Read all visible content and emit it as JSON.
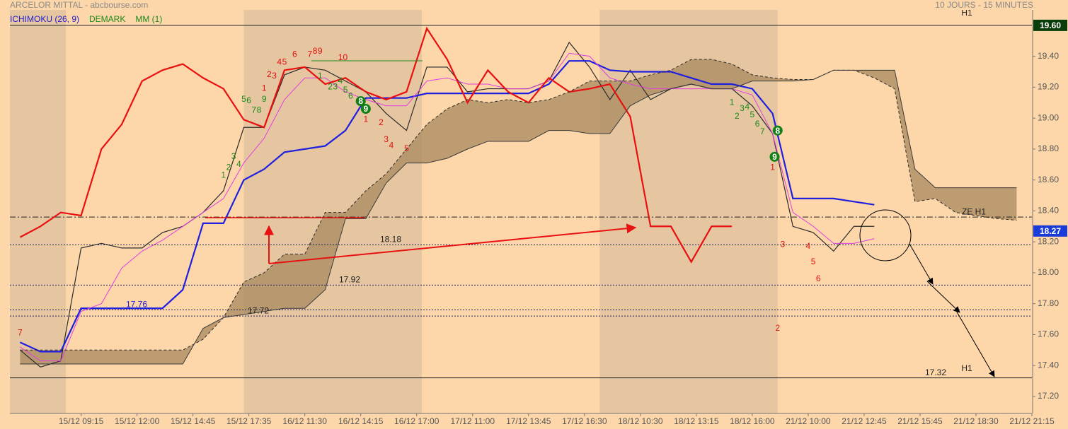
{
  "chart_data": {
    "type": "ichimoku",
    "title": "ARCELOR MITTAL - abcbourse.com",
    "subtitle": "10 JOURS - 15 MINUTES",
    "legend": [
      {
        "name": "ICHIMOKU (26, 9)",
        "color": "#2020d0"
      },
      {
        "name": "DEMARK",
        "color": "#1a8a1a"
      },
      {
        "name": "MM (1)",
        "color": "#1a8a1a"
      }
    ],
    "xlim": [
      -14,
      187
    ],
    "ylim": [
      17.09,
      19.7
    ],
    "xticks": [
      {
        "value": 0,
        "label": "15/12 09:15"
      },
      {
        "value": 11,
        "label": "15/12 12:00"
      },
      {
        "value": 22,
        "label": "15/12 14:45"
      },
      {
        "value": 33,
        "label": "15/12 17:35"
      },
      {
        "value": 44,
        "label": "16/12 11:30"
      },
      {
        "value": 55,
        "label": "16/12 14:15"
      },
      {
        "value": 66,
        "label": "16/12 17:00"
      },
      {
        "value": 77,
        "label": "17/12 11:00"
      },
      {
        "value": 88,
        "label": "17/12 13:45"
      },
      {
        "value": 99,
        "label": "17/12 16:30"
      },
      {
        "value": 110,
        "label": "18/12 10:30"
      },
      {
        "value": 121,
        "label": "18/12 13:15"
      },
      {
        "value": 132,
        "label": "18/12 16:00"
      },
      {
        "value": 143,
        "label": "21/12 10:00"
      },
      {
        "value": 154,
        "label": "21/12 12:45"
      },
      {
        "value": 165,
        "label": "21/12 15:45"
      },
      {
        "value": 176,
        "label": "21/12 18:30"
      },
      {
        "value": 187,
        "label": "21/12 21:15"
      }
    ],
    "yticks": [
      {
        "value": 17.2,
        "label": "17.20"
      },
      {
        "value": 17.4,
        "label": "17.40"
      },
      {
        "value": 17.6,
        "label": "17.60"
      },
      {
        "value": 17.8,
        "label": "17.80"
      },
      {
        "value": 18.0,
        "label": "18.00"
      },
      {
        "value": 18.2,
        "label": "18.20"
      },
      {
        "value": 18.4,
        "label": "18.40"
      },
      {
        "value": 18.6,
        "label": "18.60"
      },
      {
        "value": 18.8,
        "label": "18.80"
      },
      {
        "value": 19.0,
        "label": "19.00"
      },
      {
        "value": 19.2,
        "label": "19.20"
      },
      {
        "value": 19.4,
        "label": "19.40"
      }
    ],
    "shaded_x": [
      [
        -14,
        -3
      ],
      [
        32,
        67
      ],
      [
        102,
        137
      ]
    ],
    "x": [
      -12,
      -8,
      -4,
      0,
      4,
      8,
      12,
      16,
      20,
      24,
      28,
      32,
      36,
      40,
      44,
      48,
      52,
      56,
      60,
      64,
      68,
      72,
      76,
      80,
      84,
      88,
      92,
      96,
      100,
      104,
      108,
      112,
      116,
      120,
      124,
      128,
      132,
      136,
      140,
      144,
      148,
      152,
      156,
      160,
      164,
      168,
      172,
      176,
      180,
      184
    ],
    "series": [
      {
        "name": "price",
        "color": "#2b2b2b",
        "style": "solid",
        "values": [
          17.5,
          17.39,
          17.43,
          18.16,
          18.19,
          18.16,
          18.16,
          18.26,
          18.3,
          18.39,
          18.53,
          18.94,
          18.94,
          19.28,
          19.33,
          19.31,
          19.24,
          19.17,
          19.03,
          18.92,
          19.33,
          19.33,
          19.17,
          19.19,
          19.19,
          19.19,
          19.24,
          19.49,
          19.33,
          19.12,
          19.31,
          19.12,
          19.19,
          19.22,
          19.19,
          19.19,
          19.08,
          18.9,
          18.3,
          18.26,
          18.14,
          18.3,
          18.3,
          null,
          null,
          null,
          null,
          null,
          null,
          null
        ]
      },
      {
        "name": "kijun",
        "color": "#1f1fe0",
        "style": "solid",
        "values": [
          17.55,
          17.49,
          17.49,
          17.77,
          17.77,
          17.77,
          17.77,
          17.77,
          17.89,
          18.32,
          18.32,
          18.6,
          18.67,
          18.78,
          18.8,
          18.82,
          18.92,
          19.13,
          19.13,
          19.13,
          19.16,
          19.16,
          19.16,
          19.16,
          19.16,
          19.16,
          19.22,
          19.37,
          19.37,
          19.31,
          19.3,
          19.3,
          19.3,
          19.26,
          19.22,
          19.22,
          19.19,
          19.03,
          18.48,
          18.48,
          18.48,
          18.46,
          18.44,
          null,
          null,
          null,
          null,
          null,
          null,
          null
        ]
      },
      {
        "name": "tenkan",
        "color": "#e040e0",
        "style": "solid",
        "values": [
          17.52,
          17.43,
          17.43,
          17.75,
          17.8,
          18.03,
          18.14,
          18.21,
          18.3,
          18.39,
          18.48,
          18.71,
          18.87,
          19.12,
          19.26,
          19.26,
          19.17,
          19.12,
          19.08,
          19.08,
          19.24,
          19.26,
          19.22,
          19.22,
          19.19,
          19.19,
          19.24,
          19.42,
          19.4,
          19.26,
          19.22,
          19.19,
          19.19,
          19.19,
          19.19,
          19.19,
          19.15,
          18.9,
          18.39,
          18.3,
          18.19,
          18.19,
          18.22,
          null,
          null,
          null,
          null,
          null,
          null,
          null
        ]
      },
      {
        "name": "chikou",
        "color": "#e81010",
        "style": "solid",
        "values": [
          18.23,
          18.3,
          18.39,
          18.37,
          18.8,
          18.96,
          19.24,
          19.31,
          19.35,
          19.26,
          19.19,
          18.99,
          18.94,
          19.31,
          19.33,
          19.22,
          19.26,
          19.17,
          19.12,
          19.17,
          19.58,
          19.38,
          19.1,
          19.31,
          19.17,
          19.1,
          19.26,
          19.17,
          19.19,
          19.22,
          19.01,
          18.3,
          18.3,
          18.07,
          18.3,
          18.3,
          null,
          null,
          null,
          null,
          null,
          null,
          null,
          null,
          null,
          null,
          null,
          null,
          null,
          null
        ]
      },
      {
        "name": "span_a",
        "color": "#2a2a2a",
        "style": "dashed",
        "values": [
          17.5,
          17.5,
          17.5,
          17.5,
          17.5,
          17.5,
          17.5,
          17.5,
          17.5,
          17.57,
          17.71,
          17.94,
          18.0,
          18.12,
          18.12,
          18.39,
          18.39,
          18.53,
          18.64,
          18.8,
          18.96,
          19.06,
          19.12,
          19.1,
          19.12,
          19.1,
          19.12,
          19.17,
          19.24,
          19.24,
          19.24,
          19.28,
          19.31,
          19.38,
          19.38,
          19.35,
          19.28,
          19.26,
          19.25,
          19.25,
          19.31,
          19.31,
          19.26,
          19.19,
          18.46,
          18.48,
          18.39,
          18.37,
          18.35,
          18.34
        ]
      },
      {
        "name": "span_b",
        "color": "#3a3a3a",
        "style": "solid",
        "values": [
          17.41,
          17.41,
          17.41,
          17.41,
          17.41,
          17.41,
          17.41,
          17.41,
          17.41,
          17.64,
          17.71,
          17.73,
          17.75,
          17.77,
          17.77,
          17.89,
          18.35,
          18.35,
          18.58,
          18.71,
          18.71,
          18.74,
          18.8,
          18.85,
          18.85,
          18.85,
          18.92,
          18.92,
          18.9,
          18.9,
          19.08,
          19.15,
          19.19,
          19.22,
          19.19,
          19.19,
          19.24,
          19.24,
          19.24,
          19.25,
          19.31,
          19.31,
          19.31,
          19.31,
          18.67,
          18.55,
          18.55,
          18.55,
          18.55,
          18.55
        ]
      }
    ],
    "cloud_color": "#a8885f",
    "levels": [
      {
        "value": 19.6,
        "style": "solid",
        "label": "19.60"
      },
      {
        "value": 18.36,
        "style": "dashdot",
        "label": "ZE H1"
      },
      {
        "value": 18.18,
        "style": "dotted",
        "label": "18.18"
      },
      {
        "value": 17.92,
        "style": "dotted",
        "label": "17.92"
      },
      {
        "value": 17.76,
        "style": "dotted",
        "label": "17.76"
      },
      {
        "value": 17.72,
        "style": "dotted",
        "label": "17.72"
      },
      {
        "value": 17.32,
        "style": "solid",
        "label": "17.32",
        "note": "H1"
      }
    ],
    "top_note": "H1",
    "last_price": 18.27,
    "demark": [
      {
        "label": "7",
        "x": -12,
        "y": 17.61,
        "color": "red"
      },
      {
        "label": "1",
        "x": 36,
        "y": 19.19,
        "color": "red"
      },
      {
        "label": "2",
        "x": 37,
        "y": 19.28,
        "color": "red"
      },
      {
        "label": "3",
        "x": 38,
        "y": 19.27,
        "color": "red"
      },
      {
        "label": "4",
        "x": 39,
        "y": 19.36,
        "color": "red"
      },
      {
        "label": "5",
        "x": 40,
        "y": 19.36,
        "color": "red"
      },
      {
        "label": "6",
        "x": 42,
        "y": 19.41,
        "color": "red"
      },
      {
        "label": "7",
        "x": 45,
        "y": 19.41,
        "color": "red"
      },
      {
        "label": "8",
        "x": 46,
        "y": 19.43,
        "color": "red"
      },
      {
        "label": "9",
        "x": 47,
        "y": 19.43,
        "color": "red"
      },
      {
        "label": "10",
        "x": 51.5,
        "y": 19.39,
        "color": "red"
      },
      {
        "label": "1",
        "x": 56,
        "y": 18.99,
        "color": "red"
      },
      {
        "label": "2",
        "x": 59,
        "y": 18.97,
        "color": "red"
      },
      {
        "label": "3",
        "x": 60,
        "y": 18.86,
        "color": "red"
      },
      {
        "label": "4",
        "x": 61,
        "y": 18.82,
        "color": "red"
      },
      {
        "label": "5",
        "x": 64,
        "y": 18.8,
        "color": "red"
      },
      {
        "label": "1",
        "x": 136,
        "y": 18.68,
        "color": "red"
      },
      {
        "label": "2",
        "x": 137,
        "y": 17.64,
        "color": "red"
      },
      {
        "label": "3",
        "x": 138,
        "y": 18.18,
        "color": "red"
      },
      {
        "label": "4",
        "x": 143,
        "y": 18.17,
        "color": "red"
      },
      {
        "label": "5",
        "x": 144,
        "y": 18.07,
        "color": "red"
      },
      {
        "label": "6",
        "x": 145,
        "y": 17.96,
        "color": "red"
      },
      {
        "label": "1",
        "x": 28,
        "y": 18.63,
        "color": "green"
      },
      {
        "label": "2",
        "x": 29,
        "y": 18.68,
        "color": "green"
      },
      {
        "label": "3",
        "x": 30,
        "y": 18.75,
        "color": "green"
      },
      {
        "label": "4",
        "x": 31,
        "y": 18.7,
        "color": "green"
      },
      {
        "label": "5",
        "x": 32,
        "y": 19.12,
        "color": "green"
      },
      {
        "label": "6",
        "x": 33,
        "y": 19.11,
        "color": "green"
      },
      {
        "label": "7",
        "x": 34,
        "y": 19.05,
        "color": "green"
      },
      {
        "label": "8",
        "x": 35,
        "y": 19.05,
        "color": "green"
      },
      {
        "label": "9",
        "x": 36,
        "y": 19.12,
        "color": "green"
      },
      {
        "label": "1",
        "x": 47,
        "y": 19.27,
        "color": "green"
      },
      {
        "label": "2",
        "x": 49,
        "y": 19.2,
        "color": "green"
      },
      {
        "label": "3",
        "x": 50,
        "y": 19.2,
        "color": "green"
      },
      {
        "label": "4",
        "x": 51,
        "y": 19.24,
        "color": "green"
      },
      {
        "label": "5",
        "x": 52,
        "y": 19.18,
        "color": "green"
      },
      {
        "label": "6",
        "x": 53,
        "y": 19.14,
        "color": "green"
      },
      {
        "label": "8",
        "x": 55,
        "y": 19.11,
        "color": "green",
        "circled": true
      },
      {
        "label": "9",
        "x": 56,
        "y": 19.06,
        "color": "green",
        "circled": true
      },
      {
        "label": "1",
        "x": 128,
        "y": 19.1,
        "color": "green"
      },
      {
        "label": "2",
        "x": 129,
        "y": 19.01,
        "color": "green"
      },
      {
        "label": "3",
        "x": 130,
        "y": 19.06,
        "color": "green"
      },
      {
        "label": "4",
        "x": 131,
        "y": 19.07,
        "color": "green"
      },
      {
        "label": "5",
        "x": 132,
        "y": 19.02,
        "color": "green"
      },
      {
        "label": "6",
        "x": 133,
        "y": 18.96,
        "color": "green"
      },
      {
        "label": "7",
        "x": 134,
        "y": 18.91,
        "color": "green"
      },
      {
        "label": "9",
        "x": 136.4,
        "y": 18.75,
        "color": "green",
        "circled": true
      },
      {
        "label": "8",
        "x": 137,
        "y": 18.92,
        "color": "green",
        "circled": true
      }
    ]
  }
}
